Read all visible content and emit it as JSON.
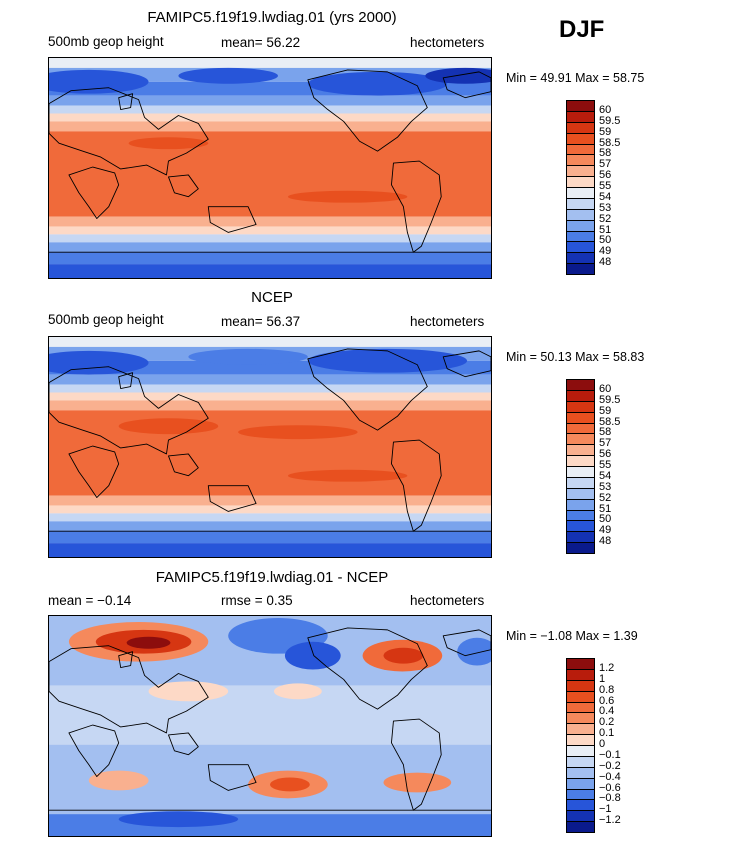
{
  "season": "DJF",
  "panels": [
    {
      "title": "FAMIPC5.f19f19.lwdiag.01 (yrs 2000)",
      "left": "500mb geop height",
      "middle": "mean=  56.22",
      "right": "hectometers",
      "minmax": "Min =  49.91 Max =  58.75",
      "scheme": "abs",
      "colorbar": {
        "labels": [
          "60",
          "59.5",
          "59",
          "58.5",
          "58",
          "57",
          "56",
          "55",
          "54",
          "53",
          "52",
          "51",
          "50",
          "49",
          "48"
        ],
        "colors": [
          "#8c0d0d",
          "#b81c0c",
          "#d63612",
          "#e8501f",
          "#f06a3a",
          "#f5895c",
          "#f9b08f",
          "#fdd9c6",
          "#e9eef5",
          "#c6d7f3",
          "#a3bff0",
          "#7aa3ec",
          "#4b7de6",
          "#2755d9",
          "#1432b3",
          "#0a1a8c"
        ]
      }
    },
    {
      "title": "NCEP",
      "left": "500mb geop height",
      "middle": "mean=  56.37",
      "right": "hectometers",
      "minmax": "Min =  50.13 Max =  58.83",
      "scheme": "abs",
      "colorbar": {
        "labels": [
          "60",
          "59.5",
          "59",
          "58.5",
          "58",
          "57",
          "56",
          "55",
          "54",
          "53",
          "52",
          "51",
          "50",
          "49",
          "48"
        ],
        "colors": [
          "#8c0d0d",
          "#b81c0c",
          "#d63612",
          "#e8501f",
          "#f06a3a",
          "#f5895c",
          "#f9b08f",
          "#fdd9c6",
          "#e9eef5",
          "#c6d7f3",
          "#a3bff0",
          "#7aa3ec",
          "#4b7de6",
          "#2755d9",
          "#1432b3",
          "#0a1a8c"
        ]
      }
    },
    {
      "title": "FAMIPC5.f19f19.lwdiag.01 - NCEP",
      "left": "mean =  −0.14",
      "middle": "rmse =   0.35",
      "right": "hectometers",
      "minmax": "Min =  −1.08 Max =   1.39",
      "scheme": "diff",
      "colorbar": {
        "labels": [
          "1.2",
          "1",
          "0.8",
          "0.6",
          "0.4",
          "0.2",
          "0.1",
          "0",
          "−0.1",
          "−0.2",
          "−0.4",
          "−0.6",
          "−0.8",
          "−1",
          "−1.2"
        ],
        "colors": [
          "#8c0d0d",
          "#b81c0c",
          "#d63612",
          "#e8501f",
          "#f06a3a",
          "#f5895c",
          "#f9b08f",
          "#fdd9c6",
          "#e9eef5",
          "#c6d7f3",
          "#a3bff0",
          "#7aa3ec",
          "#4b7de6",
          "#2755d9",
          "#1432b3",
          "#0a1a8c"
        ]
      }
    }
  ]
}
